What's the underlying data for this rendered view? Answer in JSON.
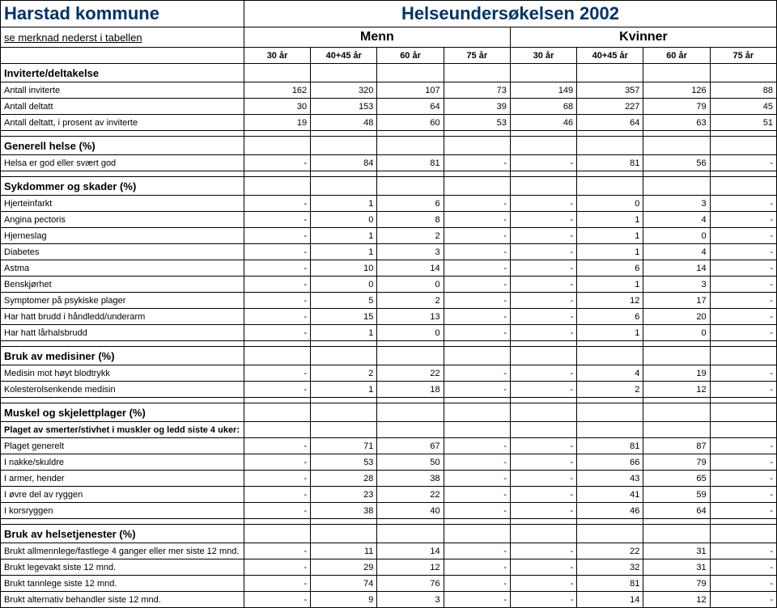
{
  "colors": {
    "title": "#003366",
    "border": "#000000",
    "background": "#ffffff",
    "text": "#000000"
  },
  "col_widths": {
    "label": 300,
    "data": 82
  },
  "header": {
    "municipality": "Harstad kommune",
    "survey_title": "Helseundersøkelsen 2002",
    "note": "se  merknad  nederst i tabellen",
    "menn": "Menn",
    "kvinner": "Kvinner",
    "ages": [
      "30 år",
      "40+45 år",
      "60 år",
      "75 år",
      "30 år",
      "40+45 år",
      "60 år",
      "75 år"
    ]
  },
  "sections": [
    {
      "title": "Inviterte/deltakelse",
      "rows": [
        {
          "label": "Antall inviterte",
          "vals": [
            "162",
            "320",
            "107",
            "73",
            "149",
            "357",
            "126",
            "88"
          ]
        },
        {
          "label": "Antall deltatt",
          "vals": [
            "30",
            "153",
            "64",
            "39",
            "68",
            "227",
            "79",
            "45"
          ]
        },
        {
          "label": "Antall deltatt, i prosent av inviterte",
          "vals": [
            "19",
            "48",
            "60",
            "53",
            "46",
            "64",
            "63",
            "51"
          ]
        }
      ]
    },
    {
      "title": "Generell helse  (%)",
      "rows": [
        {
          "label": "Helsa er god eller svært god",
          "vals": [
            "-",
            "84",
            "81",
            "-",
            "-",
            "81",
            "56",
            "-"
          ]
        }
      ]
    },
    {
      "title": "Sykdommer og skader  (%)",
      "rows": [
        {
          "label": "Hjerteinfarkt",
          "vals": [
            "-",
            "1",
            "6",
            "-",
            "-",
            "0",
            "3",
            "-"
          ]
        },
        {
          "label": "Angina pectoris",
          "vals": [
            "-",
            "0",
            "8",
            "-",
            "-",
            "1",
            "4",
            "-"
          ]
        },
        {
          "label": "Hjerneslag",
          "vals": [
            "-",
            "1",
            "2",
            "-",
            "-",
            "1",
            "0",
            "-"
          ]
        },
        {
          "label": "Diabetes",
          "vals": [
            "-",
            "1",
            "3",
            "-",
            "-",
            "1",
            "4",
            "-"
          ]
        },
        {
          "label": "Astma",
          "vals": [
            "-",
            "10",
            "14",
            "-",
            "-",
            "6",
            "14",
            "-"
          ]
        },
        {
          "label": "Benskjørhet",
          "vals": [
            "-",
            "0",
            "0",
            "-",
            "-",
            "1",
            "3",
            "-"
          ]
        },
        {
          "label": "Symptomer på psykiske plager",
          "vals": [
            "-",
            "5",
            "2",
            "-",
            "-",
            "12",
            "17",
            "-"
          ]
        },
        {
          "label": "Har hatt brudd i håndledd/underarm",
          "vals": [
            "-",
            "15",
            "13",
            "-",
            "-",
            "6",
            "20",
            "-"
          ]
        },
        {
          "label": "Har hatt lårhalsbrudd",
          "vals": [
            "-",
            "1",
            "0",
            "-",
            "-",
            "1",
            "0",
            "-"
          ]
        }
      ]
    },
    {
      "title": "Bruk av medisiner  (%)",
      "rows": [
        {
          "label": "Medisin mot høyt blodtrykk",
          "vals": [
            "-",
            "2",
            "22",
            "-",
            "-",
            "4",
            "19",
            "-"
          ]
        },
        {
          "label": "Kolesterolsenkende medisin",
          "vals": [
            "-",
            "1",
            "18",
            "-",
            "-",
            "2",
            "12",
            "-"
          ]
        }
      ]
    },
    {
      "title": "Muskel og skjelettplager  (%)",
      "rows": [
        {
          "label": "Plaget av smerter/stivhet i muskler og ledd siste 4 uker:",
          "bold": true,
          "vals": [
            "",
            "",
            "",
            "",
            "",
            "",
            "",
            ""
          ]
        },
        {
          "label": "Plaget generelt",
          "vals": [
            "-",
            "71",
            "67",
            "-",
            "-",
            "81",
            "87",
            "-"
          ]
        },
        {
          "label": "I nakke/skuldre",
          "vals": [
            "-",
            "53",
            "50",
            "-",
            "-",
            "66",
            "79",
            "-"
          ]
        },
        {
          "label": "I armer, hender",
          "vals": [
            "-",
            "28",
            "38",
            "-",
            "-",
            "43",
            "65",
            "-"
          ]
        },
        {
          "label": "I øvre del av ryggen",
          "vals": [
            "-",
            "23",
            "22",
            "-",
            "-",
            "41",
            "59",
            "-"
          ]
        },
        {
          "label": "I korsryggen",
          "vals": [
            "-",
            "38",
            "40",
            "-",
            "-",
            "46",
            "64",
            "-"
          ]
        }
      ]
    },
    {
      "title": "Bruk av helsetjenester  (%)",
      "rows": [
        {
          "label": "Brukt allmennlege/fastlege 4 ganger eller mer siste 12 mnd.",
          "vals": [
            "-",
            "11",
            "14",
            "-",
            "-",
            "22",
            "31",
            "-"
          ]
        },
        {
          "label": "Brukt legevakt siste 12 mnd.",
          "vals": [
            "-",
            "29",
            "12",
            "-",
            "-",
            "32",
            "31",
            "-"
          ]
        },
        {
          "label": "Brukt tannlege siste 12 mnd.",
          "vals": [
            "-",
            "74",
            "76",
            "-",
            "-",
            "81",
            "79",
            "-"
          ]
        },
        {
          "label": "Brukt alternativ behandler siste 12 mnd.",
          "vals": [
            "-",
            "9",
            "3",
            "-",
            "-",
            "14",
            "12",
            "-"
          ]
        }
      ]
    }
  ]
}
